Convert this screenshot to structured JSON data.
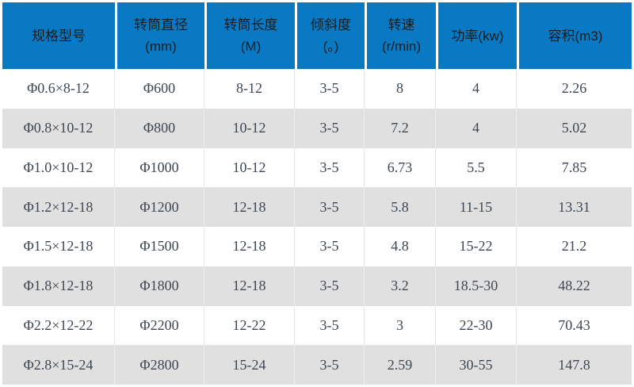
{
  "chart_data": {
    "type": "table",
    "columns": [
      {
        "line1": "规格型号",
        "line2": ""
      },
      {
        "line1": "转筒直径",
        "line2": "(mm)"
      },
      {
        "line1": "转筒长度",
        "line2": "(M)"
      },
      {
        "line1": "倾斜度",
        "line2": "(。)"
      },
      {
        "line1": "转速",
        "line2": "(r/min)"
      },
      {
        "line1": "功率(kw)",
        "line2": ""
      },
      {
        "line1": "容积(m3)",
        "line2": ""
      }
    ],
    "rows": [
      [
        "Φ0.6×8-12",
        "Φ600",
        "8-12",
        "3-5",
        "8",
        "4",
        "2.26"
      ],
      [
        "Φ0.8×10-12",
        "Φ800",
        "10-12",
        "3-5",
        "7.2",
        "4",
        "5.02"
      ],
      [
        "Φ1.0×10-12",
        "Φ1000",
        "10-12",
        "3-5",
        "6.73",
        "5.5",
        "7.85"
      ],
      [
        "Φ1.2×12-18",
        "Φ1200",
        "12-18",
        "3-5",
        "5.8",
        "11-15",
        "13.31"
      ],
      [
        "Φ1.5×12-18",
        "Φ1500",
        "12-18",
        "3-5",
        "4.8",
        "15-22",
        "21.2"
      ],
      [
        "Φ1.8×12-18",
        "Φ1800",
        "12-18",
        "3-5",
        "3.2",
        "18.5-30",
        "48.22"
      ],
      [
        "Φ2.2×12-22",
        "Φ2200",
        "12-22",
        "3-5",
        "3",
        "22-30",
        "70.43"
      ],
      [
        "Φ2.8×15-24",
        "Φ2800",
        "15-24",
        "3-5",
        "2.59",
        "30-55",
        "147.8"
      ]
    ],
    "colors": {
      "header_bg": "#0a79c3",
      "header_text": "#1c1c1c",
      "row_bg": "#ffffff",
      "row_alt_bg": "#e0e0e0",
      "cell_text": "#3d4752",
      "divider": "#e6e6e6"
    }
  }
}
